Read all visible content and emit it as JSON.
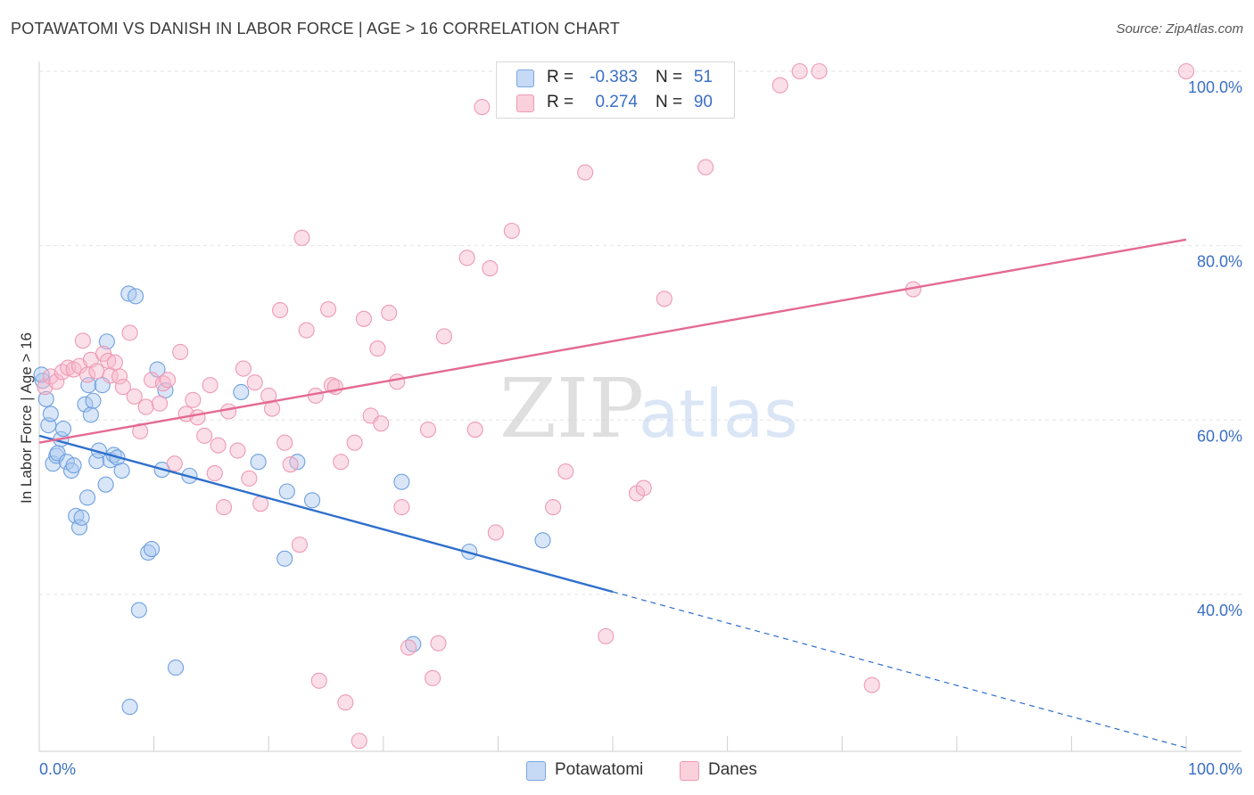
{
  "header": {
    "title": "POTAWATOMI VS DANISH IN LABOR FORCE | AGE > 16 CORRELATION CHART",
    "source": "Source: ZipAtlas.com"
  },
  "legend_top": {
    "rows": [
      {
        "r_label": "R =",
        "r_value": "-0.383",
        "n_label": "N =",
        "n_value": "51",
        "color": "#a9c7ef"
      },
      {
        "r_label": "R =",
        "r_value": "0.274",
        "n_label": "N =",
        "n_value": "90",
        "color": "#f6b7cb"
      }
    ]
  },
  "legend_bottom": {
    "items": [
      {
        "label": "Potawatomi",
        "color": "#a9c7ef"
      },
      {
        "label": "Danes",
        "color": "#f6b7cb"
      }
    ]
  },
  "watermark": {
    "zip": "ZIP",
    "atlas": "atlas"
  },
  "chart_data": {
    "type": "scatter",
    "ylabel": "In Labor Force | Age > 16",
    "xlim": [
      0,
      100
    ],
    "ylim": [
      22,
      100
    ],
    "x_tick_labels": [
      "0.0%",
      "100.0%"
    ],
    "y_ticks": [
      40,
      60,
      80,
      100
    ],
    "y_tick_labels": [
      "40.0%",
      "60.0%",
      "80.0%",
      "100.0%"
    ],
    "grid": true,
    "series": [
      {
        "name": "Potawatomi",
        "color": "#6fa0e0",
        "fill": "#a9c7ef",
        "trend": {
          "x0": 0,
          "y0": 58.2,
          "x1": 50,
          "y1": 40.3,
          "dash_to_x": 100,
          "dash_to_y": 22.4,
          "color": "#2e6fcc"
        },
        "points": [
          [
            0.3,
            64.5
          ],
          [
            0.6,
            62.4
          ],
          [
            0.8,
            59.4
          ],
          [
            1.0,
            60.7
          ],
          [
            1.2,
            55.0
          ],
          [
            1.5,
            55.9
          ],
          [
            1.6,
            56.2
          ],
          [
            1.9,
            57.8
          ],
          [
            2.1,
            59.0
          ],
          [
            2.4,
            55.2
          ],
          [
            2.8,
            54.2
          ],
          [
            3.0,
            54.8
          ],
          [
            3.2,
            49.0
          ],
          [
            3.5,
            47.7
          ],
          [
            3.7,
            48.8
          ],
          [
            4.0,
            61.8
          ],
          [
            4.2,
            51.1
          ],
          [
            4.3,
            64.0
          ],
          [
            4.5,
            60.6
          ],
          [
            4.7,
            62.2
          ],
          [
            5.0,
            55.3
          ],
          [
            5.2,
            56.5
          ],
          [
            5.5,
            64.0
          ],
          [
            5.8,
            52.6
          ],
          [
            5.9,
            69.0
          ],
          [
            6.2,
            55.4
          ],
          [
            6.5,
            56.0
          ],
          [
            6.8,
            55.7
          ],
          [
            7.2,
            54.2
          ],
          [
            7.8,
            74.5
          ],
          [
            8.4,
            74.2
          ],
          [
            8.7,
            38.2
          ],
          [
            9.5,
            44.8
          ],
          [
            9.8,
            45.2
          ],
          [
            10.3,
            65.8
          ],
          [
            10.7,
            54.3
          ],
          [
            11.0,
            63.4
          ],
          [
            11.9,
            31.6
          ],
          [
            13.1,
            53.6
          ],
          [
            17.6,
            63.2
          ],
          [
            19.1,
            55.2
          ],
          [
            21.6,
            51.8
          ],
          [
            21.4,
            44.1
          ],
          [
            22.5,
            55.2
          ],
          [
            23.8,
            50.8
          ],
          [
            31.6,
            52.9
          ],
          [
            32.6,
            34.3
          ],
          [
            37.5,
            44.9
          ],
          [
            43.9,
            46.2
          ],
          [
            7.9,
            27.1
          ],
          [
            0.2,
            65.2
          ]
        ]
      },
      {
        "name": "Danes",
        "color": "#ee9ab4",
        "fill": "#f6b7cb",
        "trend": {
          "x0": 0,
          "y0": 57.4,
          "x1": 100,
          "y1": 80.7,
          "color": "#e46a92"
        },
        "points": [
          [
            0.5,
            63.8
          ],
          [
            1.0,
            65.0
          ],
          [
            1.5,
            64.4
          ],
          [
            2.0,
            65.5
          ],
          [
            2.5,
            66.0
          ],
          [
            3.0,
            65.8
          ],
          [
            3.5,
            66.2
          ],
          [
            3.8,
            69.1
          ],
          [
            4.2,
            65.2
          ],
          [
            4.5,
            66.9
          ],
          [
            5.0,
            65.6
          ],
          [
            5.6,
            67.6
          ],
          [
            6.0,
            66.8
          ],
          [
            6.2,
            65.1
          ],
          [
            6.6,
            66.6
          ],
          [
            7.0,
            65.0
          ],
          [
            7.3,
            63.8
          ],
          [
            7.9,
            70.0
          ],
          [
            8.3,
            62.7
          ],
          [
            8.8,
            58.7
          ],
          [
            9.3,
            61.5
          ],
          [
            9.8,
            64.6
          ],
          [
            10.5,
            61.9
          ],
          [
            10.8,
            64.2
          ],
          [
            11.2,
            64.6
          ],
          [
            11.8,
            55.0
          ],
          [
            12.3,
            67.8
          ],
          [
            12.8,
            60.7
          ],
          [
            13.4,
            62.3
          ],
          [
            13.8,
            60.3
          ],
          [
            14.4,
            58.2
          ],
          [
            14.9,
            64.0
          ],
          [
            15.3,
            53.9
          ],
          [
            15.6,
            57.1
          ],
          [
            16.1,
            50.0
          ],
          [
            16.5,
            61.0
          ],
          [
            17.3,
            56.5
          ],
          [
            17.8,
            65.9
          ],
          [
            18.3,
            53.3
          ],
          [
            18.8,
            64.3
          ],
          [
            19.3,
            50.4
          ],
          [
            20.0,
            62.8
          ],
          [
            20.3,
            61.3
          ],
          [
            21.0,
            72.6
          ],
          [
            21.4,
            57.4
          ],
          [
            21.9,
            54.9
          ],
          [
            22.7,
            45.7
          ],
          [
            22.9,
            80.9
          ],
          [
            23.3,
            70.3
          ],
          [
            24.1,
            62.8
          ],
          [
            24.4,
            30.1
          ],
          [
            25.2,
            72.7
          ],
          [
            25.5,
            64.0
          ],
          [
            25.8,
            63.8
          ],
          [
            26.3,
            55.2
          ],
          [
            26.7,
            27.6
          ],
          [
            27.5,
            57.4
          ],
          [
            27.9,
            23.2
          ],
          [
            28.3,
            71.6
          ],
          [
            28.9,
            60.5
          ],
          [
            29.5,
            68.2
          ],
          [
            29.8,
            59.6
          ],
          [
            30.5,
            72.3
          ],
          [
            31.2,
            64.4
          ],
          [
            31.6,
            50.0
          ],
          [
            32.2,
            33.9
          ],
          [
            33.9,
            58.9
          ],
          [
            34.3,
            30.4
          ],
          [
            34.8,
            34.4
          ],
          [
            35.3,
            69.6
          ],
          [
            37.3,
            78.6
          ],
          [
            38.0,
            58.9
          ],
          [
            38.6,
            95.9
          ],
          [
            39.3,
            77.4
          ],
          [
            39.8,
            47.1
          ],
          [
            41.2,
            81.7
          ],
          [
            44.8,
            50.0
          ],
          [
            45.9,
            54.1
          ],
          [
            47.6,
            88.4
          ],
          [
            49.4,
            35.2
          ],
          [
            52.1,
            51.6
          ],
          [
            52.7,
            52.2
          ],
          [
            54.5,
            73.9
          ],
          [
            58.1,
            89.0
          ],
          [
            64.6,
            98.4
          ],
          [
            66.3,
            100.0
          ],
          [
            68.0,
            100.0
          ],
          [
            72.6,
            29.6
          ],
          [
            76.2,
            75.0
          ],
          [
            100.0,
            100.0
          ]
        ]
      }
    ]
  }
}
